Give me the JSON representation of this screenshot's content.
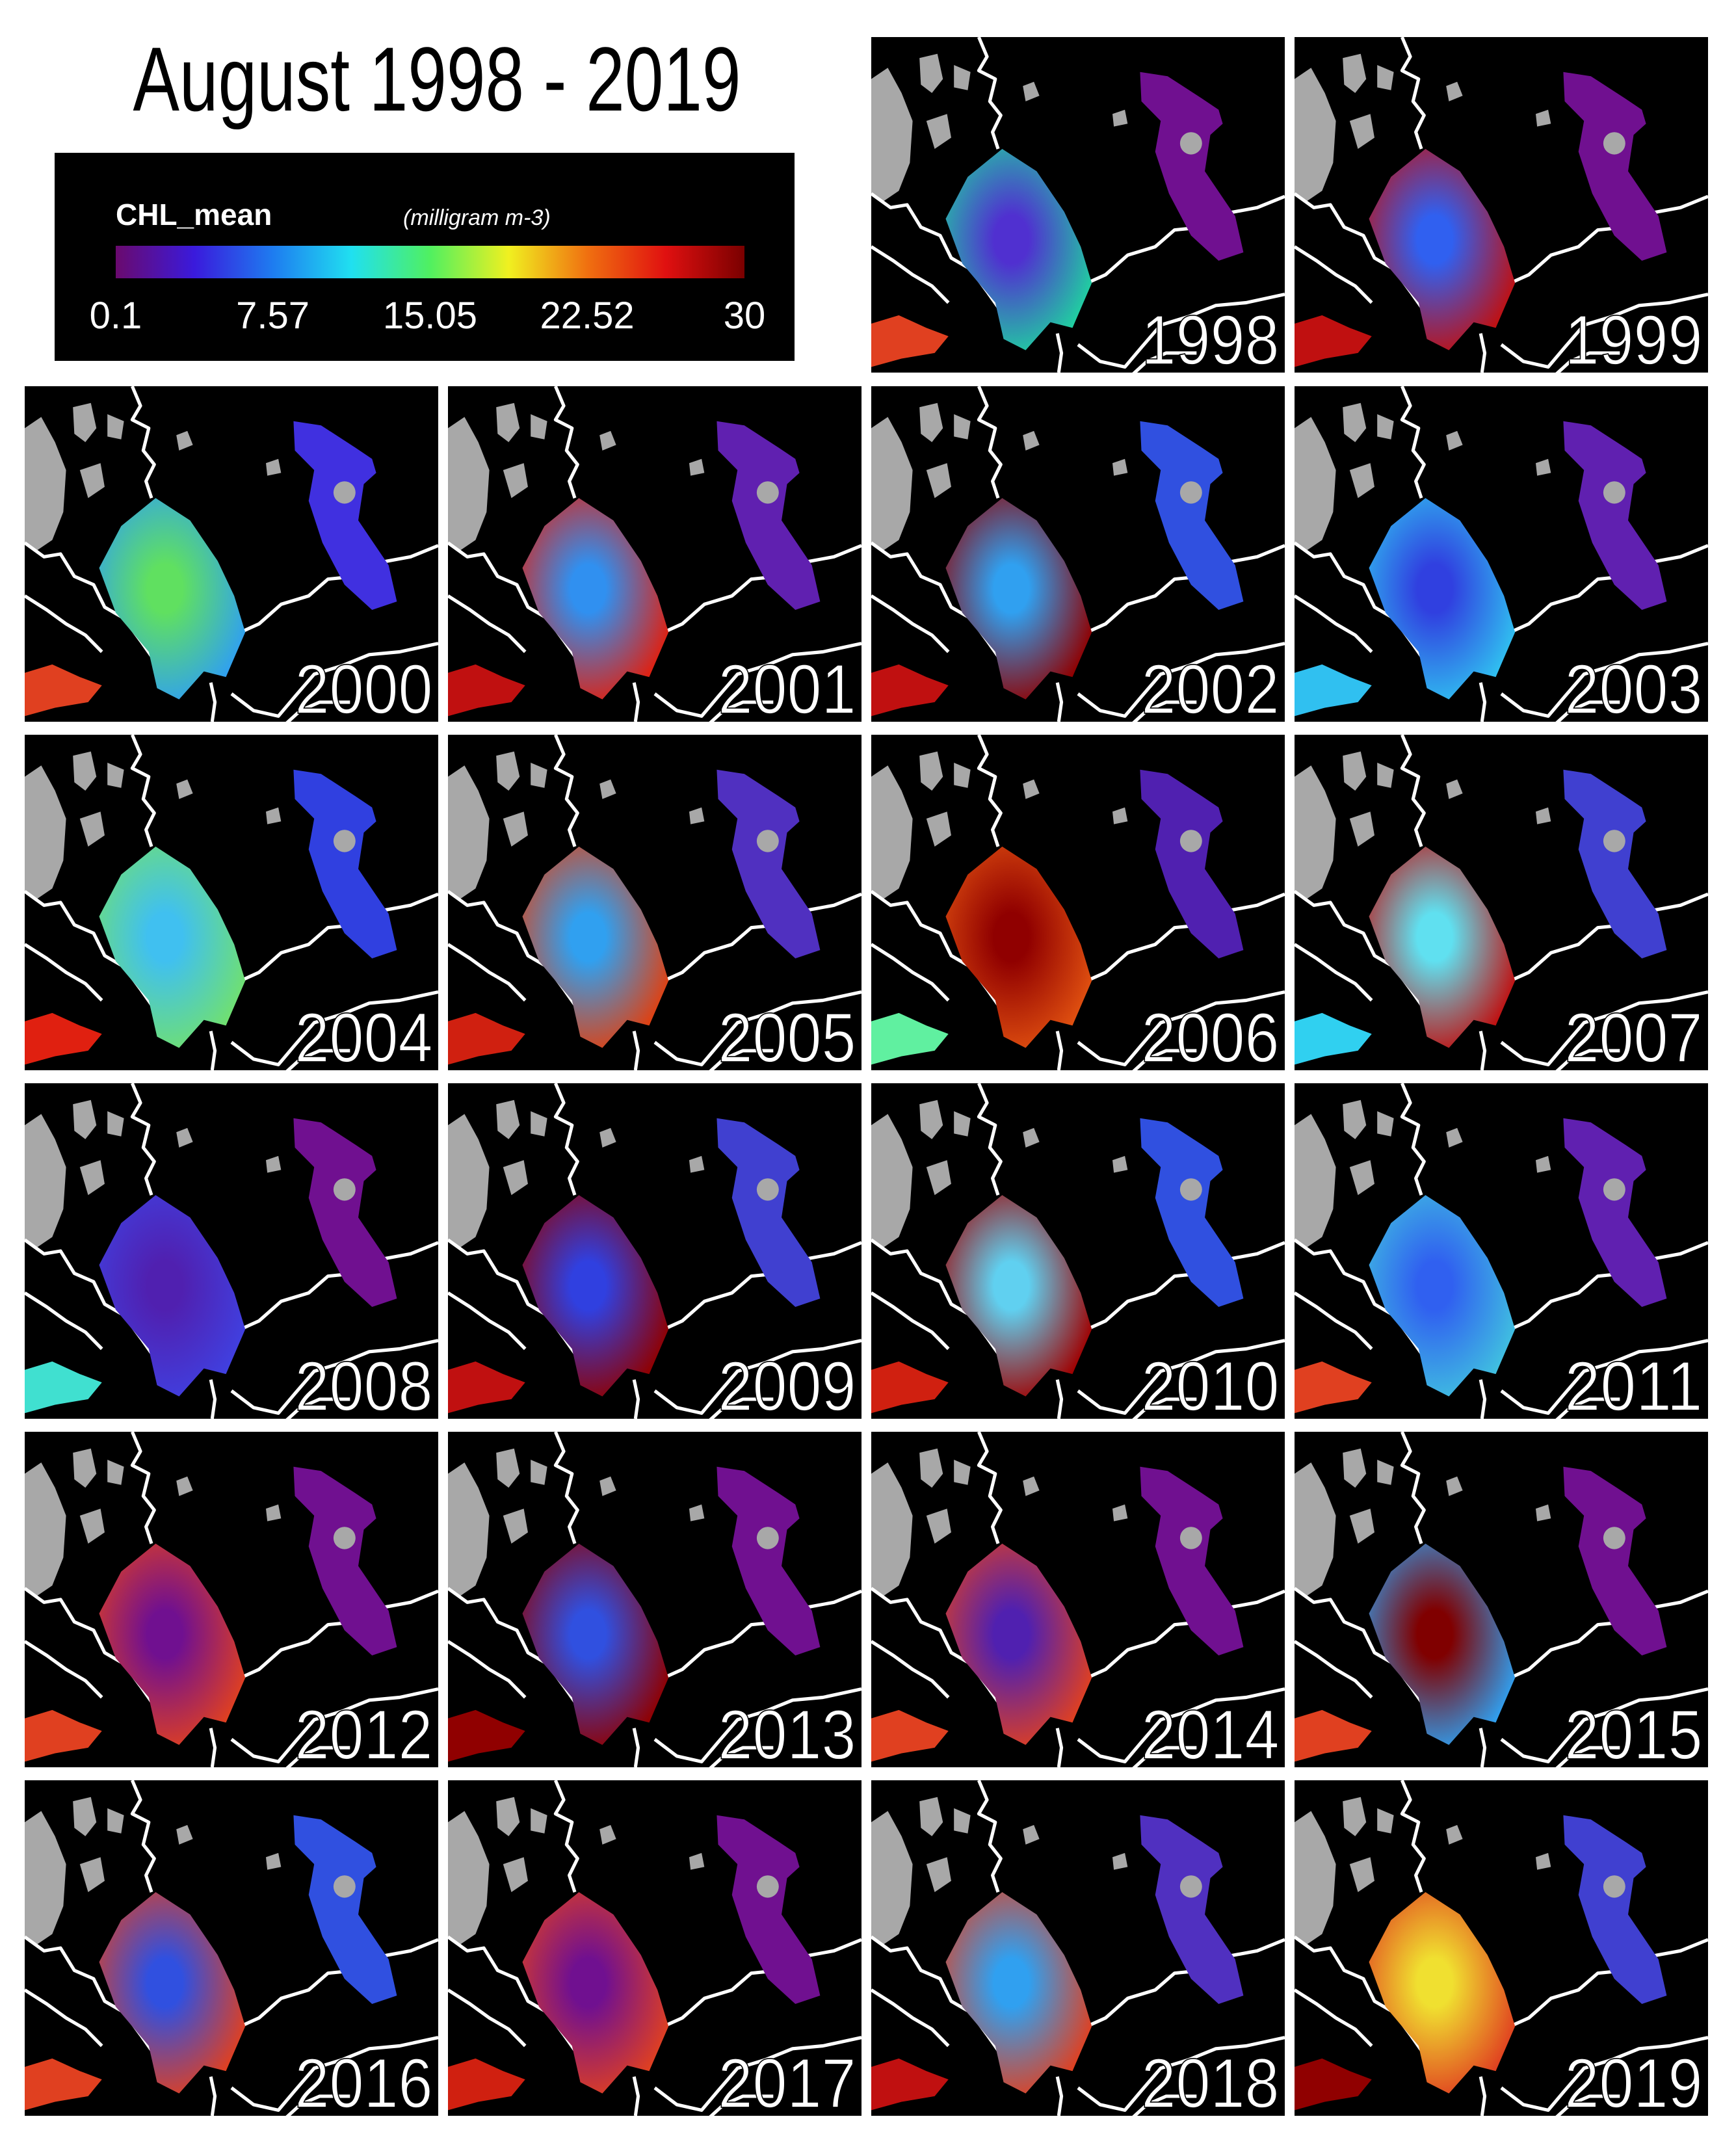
{
  "title": "August 1998 - 2019",
  "colorbar": {
    "label": "CHL_mean",
    "unit": "(milligram m-3)",
    "range": [
      0.1,
      30
    ],
    "ticks": [
      0.1,
      7.57,
      15.05,
      22.52,
      30
    ],
    "colors": [
      "#6a0a6e",
      "#3a1adc",
      "#1e7cf0",
      "#20e0f0",
      "#50f060",
      "#f0f020",
      "#f07010",
      "#e01010",
      "#7a0000"
    ]
  },
  "panels": [
    {
      "year": "1998",
      "colors": [
        "#5030d0",
        "#20d0a0",
        "#701090",
        "#e04020"
      ]
    },
    {
      "year": "1999",
      "colors": [
        "#3060f0",
        "#c01010",
        "#701090",
        "#c01010"
      ]
    },
    {
      "year": "2000",
      "colors": [
        "#60e060",
        "#30a0f0",
        "#4030e0",
        "#e04020"
      ]
    },
    {
      "year": "2001",
      "colors": [
        "#3090f0",
        "#e02010",
        "#6020b0",
        "#c01010"
      ]
    },
    {
      "year": "2002",
      "colors": [
        "#30a0f0",
        "#900000",
        "#3050e0",
        "#c01010"
      ]
    },
    {
      "year": "2003",
      "colors": [
        "#3040e0",
        "#30c0f0",
        "#6020b0",
        "#30c0f0"
      ]
    },
    {
      "year": "2004",
      "colors": [
        "#40c0f0",
        "#70e070",
        "#3040e0",
        "#e02010"
      ]
    },
    {
      "year": "2005",
      "colors": [
        "#30a0f0",
        "#e04010",
        "#5030c0",
        "#d02010"
      ]
    },
    {
      "year": "2006",
      "colors": [
        "#900000",
        "#e05010",
        "#5020b0",
        "#60f0a0"
      ]
    },
    {
      "year": "2007",
      "colors": [
        "#60e0f0",
        "#c01010",
        "#4040d0",
        "#30d0f0"
      ]
    },
    {
      "year": "2008",
      "colors": [
        "#5020b0",
        "#4040e0",
        "#701090",
        "#40e0d0"
      ]
    },
    {
      "year": "2009",
      "colors": [
        "#3040e0",
        "#900000",
        "#4040d0",
        "#c01010"
      ]
    },
    {
      "year": "2010",
      "colors": [
        "#60d0f0",
        "#a00000",
        "#3050e0",
        "#d02010"
      ]
    },
    {
      "year": "2011",
      "colors": [
        "#3060f0",
        "#40c0e0",
        "#6020b0",
        "#e04020"
      ]
    },
    {
      "year": "2012",
      "colors": [
        "#701090",
        "#e04020",
        "#701090",
        "#e04020"
      ]
    },
    {
      "year": "2013",
      "colors": [
        "#3050e0",
        "#900000",
        "#701090",
        "#900000"
      ]
    },
    {
      "year": "2014",
      "colors": [
        "#5020b0",
        "#e04020",
        "#701090",
        "#e04020"
      ]
    },
    {
      "year": "2015",
      "colors": [
        "#800000",
        "#30a0f0",
        "#701090",
        "#e04020"
      ]
    },
    {
      "year": "2016",
      "colors": [
        "#3050e0",
        "#e04020",
        "#3050e0",
        "#e04020"
      ]
    },
    {
      "year": "2017",
      "colors": [
        "#701090",
        "#e04020",
        "#701090",
        "#d02010"
      ]
    },
    {
      "year": "2018",
      "colors": [
        "#30a0f0",
        "#e04020",
        "#5030c0",
        "#c01010"
      ]
    },
    {
      "year": "2019",
      "colors": [
        "#f0e030",
        "#e04020",
        "#4040d0",
        "#900000"
      ]
    }
  ]
}
